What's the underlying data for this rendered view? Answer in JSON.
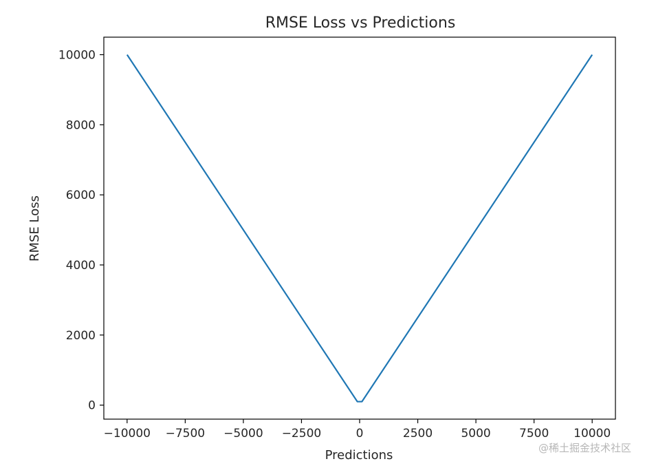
{
  "chart_data": {
    "type": "line",
    "title": "RMSE Loss vs Predictions",
    "xlabel": "Predictions",
    "ylabel": "RMSE Loss",
    "xlim": [
      -11000,
      11000
    ],
    "ylim": [
      -400,
      10500
    ],
    "xticks": [
      -10000,
      -7500,
      -5000,
      -2500,
      0,
      2500,
      5000,
      7500,
      10000
    ],
    "xtick_labels": [
      "−10000",
      "−7500",
      "−5000",
      "−2500",
      "0",
      "2500",
      "5000",
      "7500",
      "10000"
    ],
    "yticks": [
      0,
      2000,
      4000,
      6000,
      8000,
      10000
    ],
    "ytick_labels": [
      "0",
      "2000",
      "4000",
      "6000",
      "8000",
      "10000"
    ],
    "grid": false,
    "series": [
      {
        "color": "#1f77b4",
        "x": [
          -10000,
          -100,
          100,
          10000
        ],
        "y": [
          10000,
          100,
          100,
          10000
        ]
      }
    ]
  },
  "watermark": "@稀土掘金技术社区"
}
